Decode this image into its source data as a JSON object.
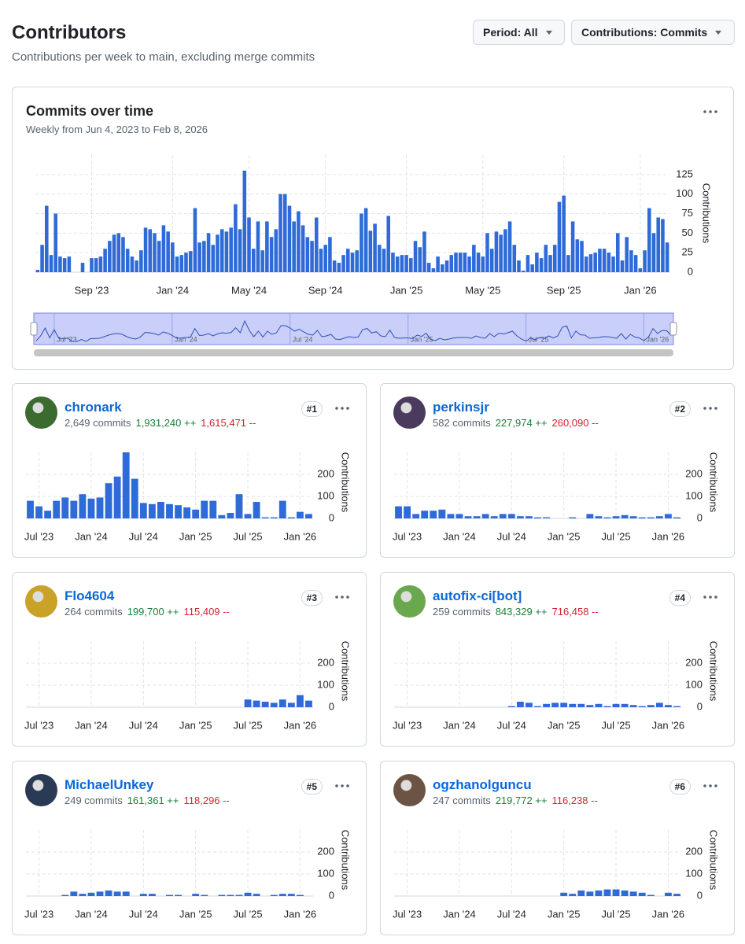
{
  "header": {
    "title": "Contributors",
    "subtitle": "Contributions per week to main, excluding merge commits"
  },
  "controls": {
    "period": "Period: All",
    "contributions": "Contributions: Commits"
  },
  "contributors": [
    {
      "name": "chronark",
      "commits": "2,649 commits",
      "additions": "1,931,240 ++",
      "deletions": "1,615,471 --",
      "rank": "#1"
    },
    {
      "name": "perkinsjr",
      "commits": "582 commits",
      "additions": "227,974 ++",
      "deletions": "260,090 --",
      "rank": "#2"
    },
    {
      "name": "Flo4604",
      "commits": "264 commits",
      "additions": "199,700 ++",
      "deletions": "115,409 --",
      "rank": "#3"
    },
    {
      "name": "autofix-ci[bot]",
      "commits": "259 commits",
      "additions": "843,329 ++",
      "deletions": "716,458 --",
      "rank": "#4"
    },
    {
      "name": "MichaelUnkey",
      "commits": "249 commits",
      "additions": "161,361 ++",
      "deletions": "118,296 --",
      "rank": "#5"
    },
    {
      "name": "ogzhanolguncu",
      "commits": "247 commits",
      "additions": "219,772 ++",
      "deletions": "116,238 --",
      "rank": "#6"
    }
  ],
  "chart_data": [
    {
      "type": "bar",
      "title": "Commits over time",
      "subtitle": "Weekly from Jun 4, 2023 to Feb 8, 2026",
      "y_label": "Contributions",
      "color": "#2f6bd8",
      "grid": true,
      "values": [
        3,
        35,
        85,
        22,
        75,
        20,
        18,
        20,
        0,
        0,
        12,
        0,
        18,
        18,
        20,
        30,
        40,
        48,
        50,
        45,
        30,
        20,
        15,
        28,
        57,
        55,
        50,
        40,
        60,
        52,
        38,
        20,
        22,
        25,
        27,
        82,
        38,
        40,
        50,
        35,
        48,
        55,
        52,
        57,
        87,
        55,
        130,
        70,
        30,
        65,
        28,
        65,
        45,
        55,
        100,
        100,
        85,
        65,
        78,
        60,
        45,
        40,
        70,
        30,
        35,
        45,
        15,
        12,
        22,
        30,
        25,
        28,
        75,
        82,
        53,
        62,
        35,
        30,
        72,
        25,
        20,
        22,
        22,
        18,
        40,
        32,
        52,
        12,
        5,
        20,
        10,
        15,
        22,
        25,
        25,
        25,
        20,
        35,
        25,
        20,
        50,
        30,
        52,
        48,
        55,
        65,
        35,
        15,
        2,
        22,
        10,
        25,
        18,
        35,
        22,
        35,
        90,
        98,
        22,
        65,
        42,
        40,
        20,
        23,
        25,
        30,
        30,
        25,
        20,
        50,
        15,
        45,
        28,
        22,
        5,
        28,
        82,
        50,
        70,
        68,
        38
      ],
      "ylim": [
        0,
        150
      ],
      "yticks": [
        0,
        25,
        50,
        75,
        100,
        125
      ],
      "xticks": [
        {
          "value": 12,
          "label": "Sep '23"
        },
        {
          "value": 30,
          "label": "Jan '24"
        },
        {
          "value": 47,
          "label": "May '24"
        },
        {
          "value": 64,
          "label": "Sep '24"
        },
        {
          "value": 82,
          "label": "Jan '25"
        },
        {
          "value": 99,
          "label": "May '25"
        },
        {
          "value": 117,
          "label": "Sep '25"
        },
        {
          "value": 134,
          "label": "Jan '26"
        }
      ],
      "brush_ticks": [
        {
          "value": 4,
          "label": "Jul '23"
        },
        {
          "value": 30,
          "label": "Jan '24"
        },
        {
          "value": 56,
          "label": "Jul '24"
        },
        {
          "value": 82,
          "label": "Jan '25"
        },
        {
          "value": 108,
          "label": "Jul '25"
        },
        {
          "value": 134,
          "label": "Jan '26"
        }
      ]
    },
    {
      "type": "bar",
      "y_label": "Contributions",
      "color": "#2f6bd8",
      "grid": true,
      "ylim": [
        0,
        300
      ],
      "yticks": [
        0,
        100,
        200
      ],
      "xticks": [
        {
          "value": 1,
          "label": "Jul '23"
        },
        {
          "value": 7,
          "label": "Jan '24"
        },
        {
          "value": 13,
          "label": "Jul '24"
        },
        {
          "value": 19,
          "label": "Jan '25"
        },
        {
          "value": 25,
          "label": "Jul '25"
        },
        {
          "value": 31,
          "label": "Jan '26"
        }
      ],
      "values": [
        80,
        55,
        35,
        80,
        95,
        80,
        110,
        90,
        95,
        160,
        190,
        300,
        180,
        70,
        65,
        75,
        65,
        60,
        50,
        40,
        80,
        80,
        15,
        25,
        110,
        20,
        75,
        5,
        5,
        80,
        5,
        30,
        20
      ]
    },
    {
      "type": "bar",
      "y_label": "Contributions",
      "color": "#2f6bd8",
      "grid": true,
      "ylim": [
        0,
        300
      ],
      "yticks": [
        0,
        100,
        200
      ],
      "xticks": [
        {
          "value": 1,
          "label": "Jul '23"
        },
        {
          "value": 7,
          "label": "Jan '24"
        },
        {
          "value": 13,
          "label": "Jul '24"
        },
        {
          "value": 19,
          "label": "Jan '25"
        },
        {
          "value": 25,
          "label": "Jul '25"
        },
        {
          "value": 31,
          "label": "Jan '26"
        }
      ],
      "values": [
        55,
        55,
        20,
        35,
        35,
        40,
        20,
        20,
        10,
        10,
        20,
        10,
        20,
        20,
        10,
        10,
        5,
        5,
        0,
        0,
        5,
        0,
        20,
        10,
        5,
        10,
        15,
        10,
        5,
        5,
        10,
        20,
        5
      ]
    },
    {
      "type": "bar",
      "y_label": "Contributions",
      "color": "#2f6bd8",
      "grid": true,
      "ylim": [
        0,
        300
      ],
      "yticks": [
        0,
        100,
        200
      ],
      "xticks": [
        {
          "value": 1,
          "label": "Jul '23"
        },
        {
          "value": 7,
          "label": "Jan '24"
        },
        {
          "value": 13,
          "label": "Jul '24"
        },
        {
          "value": 19,
          "label": "Jan '25"
        },
        {
          "value": 25,
          "label": "Jul '25"
        },
        {
          "value": 31,
          "label": "Jan '26"
        }
      ],
      "values": [
        0,
        0,
        0,
        0,
        0,
        0,
        0,
        0,
        0,
        0,
        0,
        0,
        0,
        0,
        0,
        0,
        0,
        0,
        0,
        0,
        0,
        0,
        0,
        0,
        0,
        35,
        30,
        25,
        20,
        35,
        20,
        55,
        30
      ]
    },
    {
      "type": "bar",
      "y_label": "Contributions",
      "color": "#2f6bd8",
      "grid": true,
      "ylim": [
        0,
        300
      ],
      "yticks": [
        0,
        100,
        200
      ],
      "xticks": [
        {
          "value": 1,
          "label": "Jul '23"
        },
        {
          "value": 7,
          "label": "Jan '24"
        },
        {
          "value": 13,
          "label": "Jul '24"
        },
        {
          "value": 19,
          "label": "Jan '25"
        },
        {
          "value": 25,
          "label": "Jul '25"
        },
        {
          "value": 31,
          "label": "Jan '26"
        }
      ],
      "values": [
        0,
        0,
        0,
        0,
        0,
        0,
        0,
        0,
        0,
        0,
        0,
        0,
        0,
        5,
        25,
        20,
        5,
        15,
        20,
        20,
        15,
        15,
        10,
        15,
        5,
        15,
        15,
        10,
        5,
        10,
        20,
        10,
        5
      ]
    },
    {
      "type": "bar",
      "y_label": "Contributions",
      "color": "#2f6bd8",
      "grid": true,
      "ylim": [
        0,
        300
      ],
      "yticks": [
        0,
        100,
        200
      ],
      "xticks": [
        {
          "value": 1,
          "label": "Jul '23"
        },
        {
          "value": 7,
          "label": "Jan '24"
        },
        {
          "value": 13,
          "label": "Jul '24"
        },
        {
          "value": 19,
          "label": "Jan '25"
        },
        {
          "value": 25,
          "label": "Jul '25"
        },
        {
          "value": 31,
          "label": "Jan '26"
        }
      ],
      "values": [
        0,
        0,
        0,
        0,
        5,
        20,
        10,
        15,
        20,
        25,
        20,
        20,
        0,
        10,
        10,
        0,
        5,
        5,
        0,
        10,
        5,
        0,
        5,
        5,
        5,
        15,
        10,
        0,
        5,
        10,
        10,
        5,
        0
      ]
    },
    {
      "type": "bar",
      "y_label": "Contributions",
      "color": "#2f6bd8",
      "grid": true,
      "ylim": [
        0,
        300
      ],
      "yticks": [
        0,
        100,
        200
      ],
      "xticks": [
        {
          "value": 1,
          "label": "Jul '23"
        },
        {
          "value": 7,
          "label": "Jan '24"
        },
        {
          "value": 13,
          "label": "Jul '24"
        },
        {
          "value": 19,
          "label": "Jan '25"
        },
        {
          "value": 25,
          "label": "Jul '25"
        },
        {
          "value": 31,
          "label": "Jan '26"
        }
      ],
      "values": [
        0,
        0,
        0,
        0,
        0,
        0,
        0,
        0,
        0,
        0,
        0,
        0,
        0,
        0,
        0,
        0,
        0,
        0,
        0,
        15,
        10,
        25,
        20,
        25,
        30,
        30,
        25,
        20,
        15,
        5,
        0,
        15,
        10
      ]
    }
  ]
}
